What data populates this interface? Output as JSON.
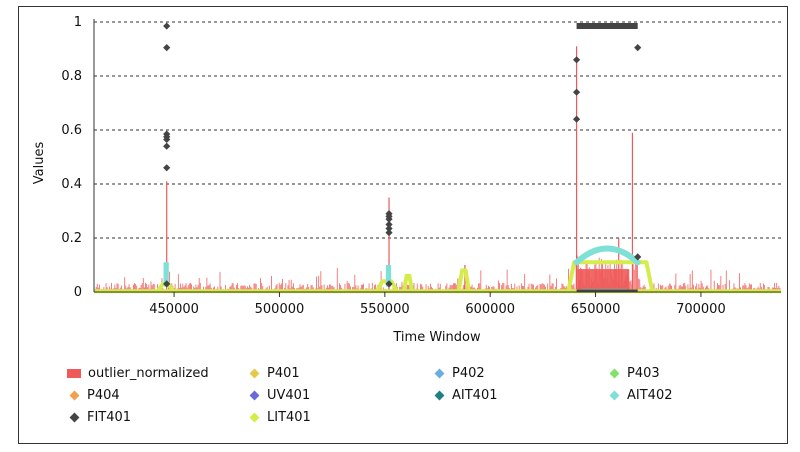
{
  "chart_data": {
    "type": "scatter",
    "title": "",
    "xlabel": "Time Window",
    "ylabel": "Values",
    "xlim": [
      412000,
      738000
    ],
    "ylim": [
      0,
      1
    ],
    "x_ticks": [
      450000,
      500000,
      550000,
      600000,
      650000,
      700000
    ],
    "y_ticks": [
      0,
      0.2,
      0.4,
      0.6,
      0.8,
      1
    ],
    "y_tick_labels": [
      "0",
      "0.2",
      "0.4",
      "0.6",
      "0.8",
      "1"
    ],
    "grid": "horizontal-dashed",
    "legend_position": "bottom",
    "legend": [
      {
        "name": "outlier_normalized",
        "color": "#ee5a5a",
        "marker": "rect"
      },
      {
        "name": "P401",
        "color": "#e3c94e",
        "marker": "diamond"
      },
      {
        "name": "P402",
        "color": "#6aaee0",
        "marker": "diamond"
      },
      {
        "name": "P403",
        "color": "#86e06a",
        "marker": "diamond"
      },
      {
        "name": "P404",
        "color": "#f0a04e",
        "marker": "diamond"
      },
      {
        "name": "UV401",
        "color": "#6a6ad6",
        "marker": "diamond"
      },
      {
        "name": "AIT401",
        "color": "#1f7f86",
        "marker": "diamond"
      },
      {
        "name": "AIT402",
        "color": "#7fe0d8",
        "marker": "diamond"
      },
      {
        "name": "FIT401",
        "color": "#444444",
        "marker": "diamond"
      },
      {
        "name": "LIT401",
        "color": "#d6ec4a",
        "marker": "diamond"
      }
    ],
    "outlier_peaks": [
      {
        "x": 446500,
        "y": 0.41
      },
      {
        "x": 552000,
        "y": 0.35
      },
      {
        "x": 588000,
        "y": 0.1
      },
      {
        "x": 641000,
        "y": 0.91
      },
      {
        "x": 661000,
        "y": 0.2
      },
      {
        "x": 667500,
        "y": 0.59
      }
    ],
    "fit401_points": [
      {
        "x": 446500,
        "y": 0.985
      },
      {
        "x": 446500,
        "y": 0.905
      },
      {
        "x": 446500,
        "y": 0.585
      },
      {
        "x": 446500,
        "y": 0.575
      },
      {
        "x": 446500,
        "y": 0.565
      },
      {
        "x": 446500,
        "y": 0.54
      },
      {
        "x": 446500,
        "y": 0.46
      },
      {
        "x": 446500,
        "y": 0.03
      },
      {
        "x": 552000,
        "y": 0.29
      },
      {
        "x": 552000,
        "y": 0.28
      },
      {
        "x": 552000,
        "y": 0.27
      },
      {
        "x": 552000,
        "y": 0.25
      },
      {
        "x": 552000,
        "y": 0.235
      },
      {
        "x": 552000,
        "y": 0.22
      },
      {
        "x": 552000,
        "y": 0.03
      },
      {
        "x": 641000,
        "y": 0.86
      },
      {
        "x": 641000,
        "y": 0.74
      },
      {
        "x": 641000,
        "y": 0.64
      },
      {
        "x": 670000,
        "y": 0.905
      },
      {
        "x": 670000,
        "y": 0.13
      }
    ],
    "fit401_band": {
      "x_start": 641000,
      "x_end": 670000,
      "y": 0.985
    },
    "ait402_segments": [
      {
        "x_start": 445000,
        "x_end": 447500,
        "y_low": 0.02,
        "y_high": 0.11
      },
      {
        "x_start": 550500,
        "x_end": 553000,
        "y_low": 0.02,
        "y_high": 0.1
      },
      {
        "x_start": 641000,
        "x_end": 670000,
        "y_low": 0.11,
        "y_high": 0.16
      }
    ],
    "lit401_bumps": [
      {
        "x_start": 442000,
        "x_end": 450000,
        "y": 0.03
      },
      {
        "x_start": 546000,
        "x_end": 556000,
        "y": 0.04
      },
      {
        "x_start": 559000,
        "x_end": 563000,
        "y": 0.06
      },
      {
        "x_start": 585000,
        "x_end": 590000,
        "y": 0.08
      },
      {
        "x_start": 637000,
        "x_end": 677000,
        "y": 0.11
      }
    ]
  }
}
